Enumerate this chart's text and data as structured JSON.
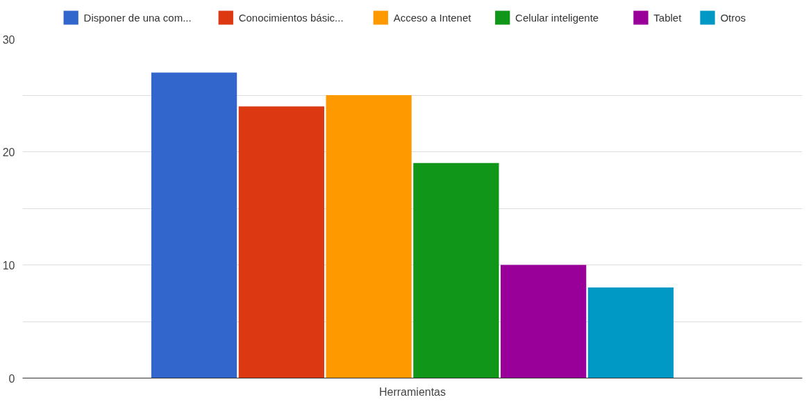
{
  "chart_data": {
    "type": "bar",
    "xlabel": "Herramientas",
    "categories": [
      null
    ],
    "series": [
      {
        "name": "Disponer de una com...",
        "color": "#3366cc",
        "values": [
          27
        ]
      },
      {
        "name": "Conocimientos básic...",
        "color": "#dc3912",
        "values": [
          24
        ]
      },
      {
        "name": "Acceso a Intenet",
        "color": "#ff9900",
        "values": [
          25
        ]
      },
      {
        "name": "Celular inteligente",
        "color": "#109618",
        "values": [
          19
        ]
      },
      {
        "name": "Tablet",
        "color": "#990099",
        "values": [
          10
        ]
      },
      {
        "name": "Otros",
        "color": "#0099c6",
        "values": [
          8
        ]
      }
    ],
    "ylim": [
      0,
      30
    ],
    "yticks": [
      0,
      {
        "value": 5,
        "label": null
      },
      10,
      {
        "value": 15,
        "label": null
      },
      20,
      {
        "value": 25,
        "label": null
      },
      30
    ],
    "grid": "y",
    "legend": "top"
  }
}
